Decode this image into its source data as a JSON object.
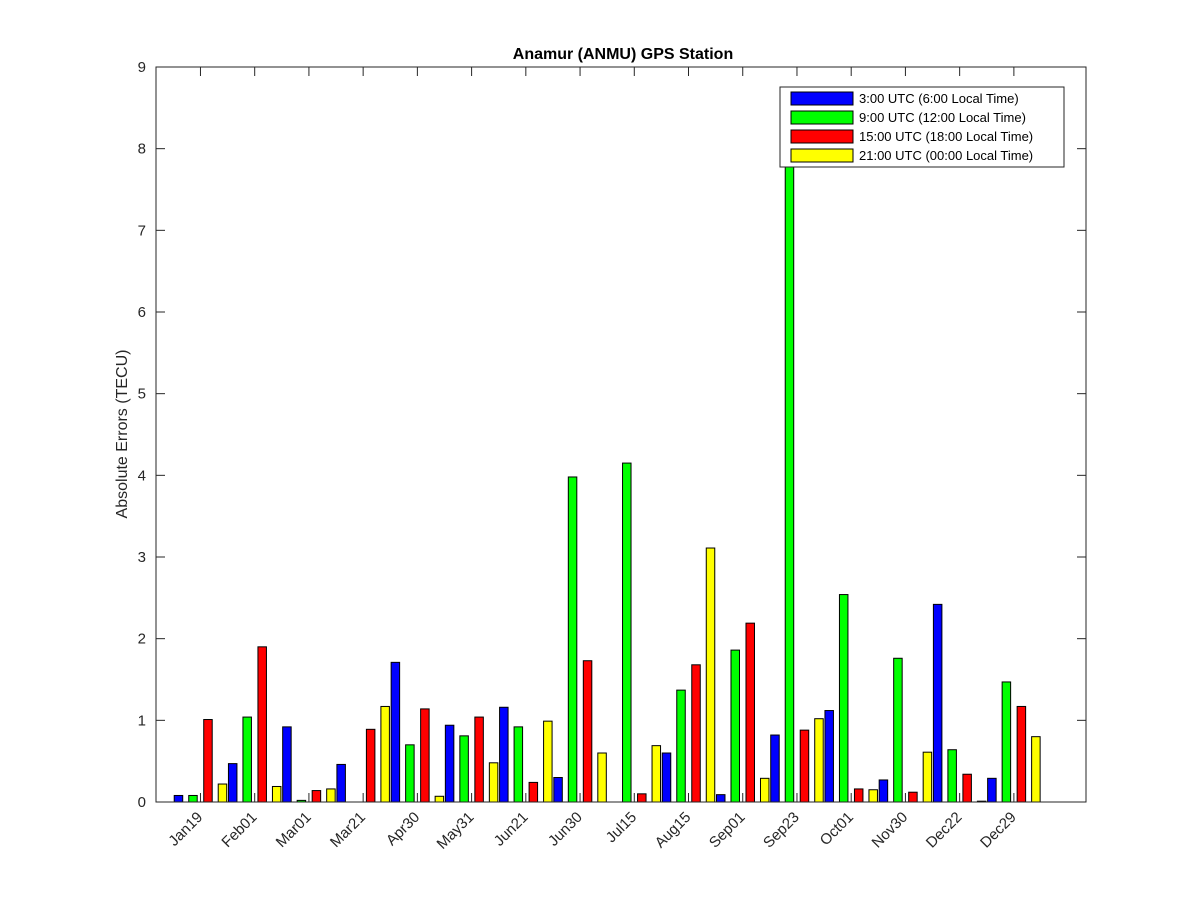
{
  "chart_data": {
    "type": "bar",
    "title": "Anamur (ANMU) GPS Station",
    "xlabel": "",
    "ylabel": "Absolute Errors (TECU)",
    "ylim": [
      0,
      9
    ],
    "yticks": [
      0,
      1,
      2,
      3,
      4,
      5,
      6,
      7,
      8,
      9
    ],
    "grid": false,
    "legend_position": "top-right",
    "categories": [
      "Jan19",
      "Feb01",
      "Mar01",
      "Mar21",
      "Apr30",
      "May31",
      "Jun21",
      "Jun30",
      "Jul15",
      "Aug15",
      "Sep01",
      "Sep23",
      "Oct01",
      "Nov30",
      "Dec22",
      "Dec29"
    ],
    "series": [
      {
        "name": "3:00 UTC (6:00 Local Time)",
        "color": "#0000ff",
        "values": [
          0.08,
          0.47,
          0.92,
          0.46,
          1.71,
          0.94,
          1.16,
          0.3,
          0.0,
          0.6,
          0.09,
          0.82,
          1.12,
          0.27,
          2.42,
          0.29
        ]
      },
      {
        "name": "9:00 UTC (12:00 Local Time)",
        "color": "#00ff00",
        "values": [
          0.08,
          1.04,
          0.02,
          0.0,
          0.7,
          0.81,
          0.92,
          3.98,
          4.15,
          1.37,
          1.86,
          7.9,
          2.54,
          1.76,
          0.64,
          1.47
        ]
      },
      {
        "name": "15:00 UTC (18:00 Local Time)",
        "color": "#ff0000",
        "values": [
          1.01,
          1.9,
          0.14,
          0.89,
          1.14,
          1.04,
          0.24,
          1.73,
          0.1,
          1.68,
          2.19,
          0.88,
          0.16,
          0.12,
          0.34,
          1.17
        ]
      },
      {
        "name": "21:00 UTC (00:00 Local Time)",
        "color": "#ffff00",
        "values": [
          0.22,
          0.19,
          0.16,
          1.17,
          0.07,
          0.48,
          0.99,
          0.6,
          0.69,
          3.11,
          0.29,
          1.02,
          0.15,
          0.61,
          0.01,
          0.8
        ]
      }
    ]
  }
}
